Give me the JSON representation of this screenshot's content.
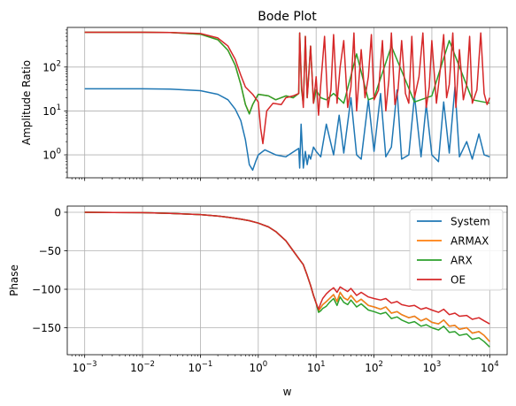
{
  "chart_data": [
    {
      "type": "line",
      "title": "Bode Plot",
      "xlabel": "",
      "ylabel": "Amplitude Ratio",
      "xscale": "log",
      "yscale": "log",
      "xlim": [
        0.0005,
        20000
      ],
      "ylim": [
        0.3,
        800
      ],
      "grid": true,
      "yticks": [
        {
          "value": 1,
          "label_base": "10",
          "label_exp": "0"
        },
        {
          "value": 10,
          "label_base": "10",
          "label_exp": "1"
        },
        {
          "value": 100,
          "label_base": "10",
          "label_exp": "2"
        }
      ],
      "series": [
        {
          "key": "system",
          "color": "#1f77b4",
          "x": [
            0.001,
            0.01,
            0.03,
            0.1,
            0.2,
            0.3,
            0.4,
            0.5,
            0.6,
            0.7,
            0.8,
            0.9,
            1.0,
            1.3,
            2,
            3,
            5,
            5.2,
            5.5,
            6,
            6.5,
            7,
            7.5,
            8,
            9,
            10,
            12,
            15,
            20,
            25,
            30,
            40,
            50,
            60,
            80,
            100,
            130,
            160,
            200,
            250,
            300,
            400,
            500,
            650,
            800,
            1000,
            1300,
            1600,
            2000,
            2500,
            3000,
            4000,
            5000,
            6500,
            8000,
            10000
          ],
          "y": [
            32,
            32,
            31.5,
            29,
            24,
            18,
            11,
            6,
            2.2,
            0.6,
            0.45,
            0.7,
            1.0,
            1.3,
            1.0,
            0.9,
            1.4,
            0.5,
            5,
            0.5,
            1.2,
            0.6,
            1.0,
            0.8,
            1.5,
            1.2,
            0.9,
            5,
            1.0,
            8,
            1.1,
            20,
            1.0,
            0.8,
            18,
            1.2,
            25,
            0.9,
            1.5,
            30,
            0.8,
            1.0,
            22,
            0.9,
            14,
            1.0,
            0.7,
            16,
            1.1,
            35,
            0.9,
            2.0,
            0.8,
            3,
            1.0,
            0.9
          ]
        },
        {
          "key": "armax",
          "color": "#ff7f0e",
          "x": [
            0.001,
            0.01,
            0.03,
            0.1,
            0.2,
            0.3,
            0.4,
            0.5,
            0.6,
            0.7,
            0.8,
            1.0,
            1.5,
            2,
            3,
            4,
            5
          ],
          "y": [
            620,
            620,
            610,
            560,
            420,
            240,
            110,
            40,
            14,
            9,
            14,
            24,
            22,
            18,
            22,
            20,
            25
          ]
        },
        {
          "key": "arx",
          "color": "#2ca02c",
          "x": [
            0.001,
            0.01,
            0.03,
            0.1,
            0.2,
            0.3,
            0.4,
            0.5,
            0.6,
            0.7,
            0.8,
            1.0,
            1.5,
            2,
            3,
            4,
            5,
            5.2,
            5.6,
            6,
            6.5,
            7,
            8,
            9,
            10,
            12,
            15,
            20,
            30,
            50,
            80,
            100,
            200,
            500,
            1000,
            2000,
            5000,
            10000
          ],
          "y": [
            620,
            620,
            610,
            560,
            420,
            240,
            110,
            40,
            14,
            8.5,
            14,
            24,
            22,
            18,
            22,
            20,
            25,
            600,
            30,
            14,
            500,
            20,
            300,
            15,
            30,
            20,
            18,
            25,
            15,
            200,
            18,
            20,
            300,
            16,
            22,
            400,
            18,
            15
          ]
        },
        {
          "key": "oe",
          "color": "#d62728",
          "x": [
            0.001,
            0.01,
            0.03,
            0.1,
            0.2,
            0.3,
            0.4,
            0.5,
            0.6,
            0.8,
            1.0,
            1.1,
            1.2,
            1.4,
            1.8,
            2.5,
            3,
            4,
            5,
            5.2,
            5.6,
            6,
            6.5,
            7,
            7.5,
            8,
            9,
            10,
            11,
            12,
            14,
            16,
            18,
            20,
            23,
            26,
            30,
            35,
            40,
            45,
            50,
            60,
            70,
            80,
            90,
            100,
            120,
            140,
            160,
            180,
            200,
            230,
            260,
            300,
            350,
            400,
            450,
            500,
            600,
            700,
            800,
            900,
            1000,
            1200,
            1400,
            1600,
            1800,
            2000,
            2300,
            2600,
            3000,
            3500,
            4000,
            4500,
            5000,
            6000,
            7000,
            8000,
            9000,
            10000
          ],
          "y": [
            620,
            620,
            615,
            580,
            460,
            300,
            150,
            65,
            35,
            24,
            16,
            4,
            1.8,
            10,
            15,
            14,
            20,
            22,
            25,
            600,
            40,
            12,
            500,
            20,
            70,
            300,
            15,
            60,
            8,
            40,
            500,
            12,
            30,
            550,
            15,
            100,
            400,
            12,
            35,
            600,
            10,
            250,
            20,
            60,
            550,
            18,
            30,
            400,
            10,
            50,
            600,
            14,
            30,
            400,
            25,
            15,
            500,
            20,
            60,
            600,
            12,
            35,
            400,
            15,
            90,
            550,
            20,
            40,
            600,
            12,
            250,
            18,
            40,
            500,
            15,
            30,
            600,
            25,
            14,
            20
          ]
        }
      ]
    },
    {
      "type": "line",
      "title": "",
      "xlabel": "w",
      "ylabel": "Phase",
      "xscale": "log",
      "yscale": "linear",
      "xlim": [
        0.0005,
        20000
      ],
      "ylim": [
        -185,
        8
      ],
      "grid": true,
      "legend": "top-right",
      "xticks": [
        {
          "value": 0.001,
          "label_base": "10",
          "label_exp": "−3"
        },
        {
          "value": 0.01,
          "label_base": "10",
          "label_exp": "−2"
        },
        {
          "value": 0.1,
          "label_base": "10",
          "label_exp": "−1"
        },
        {
          "value": 1,
          "label_base": "10",
          "label_exp": "0"
        },
        {
          "value": 10,
          "label_base": "10",
          "label_exp": "1"
        },
        {
          "value": 100,
          "label_base": "10",
          "label_exp": "2"
        },
        {
          "value": 1000,
          "label_base": "10",
          "label_exp": "3"
        },
        {
          "value": 10000,
          "label_base": "10",
          "label_exp": "4"
        }
      ],
      "yticks": [
        {
          "value": 0,
          "label": "0"
        },
        {
          "value": -50,
          "label": "−50"
        },
        {
          "value": -100,
          "label": "−100"
        },
        {
          "value": -150,
          "label": "−150"
        }
      ],
      "series": [
        {
          "key": "system",
          "name": "System",
          "color": "#1f77b4",
          "x": [
            0.001,
            0.01,
            0.03,
            0.1,
            0.2,
            0.3,
            0.5,
            0.7,
            1.0,
            1.5,
            2,
            3,
            4,
            5,
            6,
            7,
            8,
            9,
            10,
            11,
            12,
            13,
            15,
            17,
            20,
            23,
            26,
            30,
            35,
            40,
            50,
            60,
            80,
            100,
            130,
            160,
            200,
            250,
            300,
            400,
            500,
            650,
            800,
            1000,
            1300,
            1600,
            2000,
            2500,
            3000,
            4000,
            5000,
            6500,
            8000,
            10000
          ],
          "y": [
            0,
            -0.5,
            -1.5,
            -3,
            -5,
            -6.5,
            -9,
            -11,
            -14,
            -19,
            -25,
            -37,
            -50,
            -60,
            -68,
            -82,
            -95,
            -108,
            -118,
            -128,
            -124,
            -120,
            -116,
            -112,
            -107,
            -116,
            -104,
            -111,
            -114,
            -108,
            -117,
            -113,
            -121,
            -123,
            -126,
            -123,
            -131,
            -129,
            -133,
            -137,
            -135,
            -141,
            -138,
            -143,
            -145,
            -140,
            -148,
            -147,
            -152,
            -150,
            -157,
            -155,
            -160,
            -168
          ]
        },
        {
          "key": "armax",
          "name": "ARMAX",
          "color": "#ff7f0e",
          "x": [
            0.001,
            0.01,
            0.03,
            0.1,
            0.2,
            0.3,
            0.5,
            0.7,
            1.0,
            1.5,
            2,
            3,
            4,
            5,
            6,
            7,
            8,
            9,
            10,
            11,
            12,
            13,
            15,
            17,
            20,
            23,
            26,
            30,
            35,
            40,
            50,
            60,
            80,
            100,
            130,
            160,
            200,
            250,
            300,
            400,
            500,
            650,
            800,
            1000,
            1300,
            1600,
            2000,
            2500,
            3000,
            4000,
            5000,
            6500,
            8000,
            10000
          ],
          "y": [
            0,
            -0.5,
            -1.5,
            -3,
            -5,
            -6.5,
            -9,
            -11,
            -14,
            -19,
            -25,
            -37,
            -50,
            -60,
            -68,
            -82,
            -95,
            -108,
            -118,
            -128,
            -124,
            -120,
            -116,
            -112,
            -107,
            -116,
            -104,
            -111,
            -114,
            -108,
            -117,
            -113,
            -121,
            -123,
            -126,
            -123,
            -131,
            -129,
            -133,
            -137,
            -135,
            -141,
            -138,
            -143,
            -145,
            -140,
            -148,
            -147,
            -152,
            -150,
            -157,
            -155,
            -160,
            -168
          ]
        },
        {
          "key": "arx",
          "name": "ARX",
          "color": "#2ca02c",
          "x": [
            0.001,
            0.01,
            0.03,
            0.1,
            0.2,
            0.3,
            0.5,
            0.7,
            1.0,
            1.5,
            2,
            3,
            4,
            5,
            6,
            7,
            8,
            9,
            10,
            11,
            12,
            13,
            15,
            17,
            20,
            23,
            26,
            30,
            35,
            40,
            50,
            60,
            80,
            100,
            130,
            160,
            200,
            250,
            300,
            400,
            500,
            650,
            800,
            1000,
            1300,
            1600,
            2000,
            2500,
            3000,
            4000,
            5000,
            6500,
            8000,
            10000
          ],
          "y": [
            0,
            -0.5,
            -1.5,
            -3,
            -5,
            -6.5,
            -9,
            -11,
            -14,
            -19,
            -25,
            -37,
            -50,
            -60,
            -68,
            -82,
            -95,
            -108,
            -118,
            -130,
            -128,
            -125,
            -122,
            -117,
            -112,
            -121,
            -110,
            -117,
            -120,
            -114,
            -123,
            -119,
            -127,
            -129,
            -132,
            -130,
            -138,
            -136,
            -140,
            -144,
            -142,
            -148,
            -146,
            -150,
            -153,
            -148,
            -156,
            -155,
            -160,
            -158,
            -165,
            -163,
            -168,
            -175
          ]
        },
        {
          "key": "oe",
          "name": "OE",
          "color": "#d62728",
          "x": [
            0.001,
            0.01,
            0.03,
            0.1,
            0.2,
            0.3,
            0.5,
            0.7,
            1.0,
            1.5,
            2,
            3,
            4,
            5,
            6,
            7,
            8,
            9,
            10,
            11,
            12,
            13,
            15,
            17,
            20,
            23,
            26,
            30,
            35,
            40,
            50,
            60,
            80,
            100,
            130,
            160,
            200,
            250,
            300,
            400,
            500,
            650,
            800,
            1000,
            1300,
            1600,
            2000,
            2500,
            3000,
            4000,
            5000,
            6500,
            8000,
            10000
          ],
          "y": [
            0,
            -0.5,
            -1.5,
            -3,
            -5,
            -6.5,
            -9,
            -11,
            -14,
            -19,
            -25,
            -37,
            -50,
            -60,
            -68,
            -82,
            -95,
            -108,
            -118,
            -126,
            -118,
            -112,
            -106,
            -102,
            -98,
            -104,
            -97,
            -100,
            -103,
            -99,
            -108,
            -104,
            -110,
            -112,
            -114,
            -112,
            -118,
            -116,
            -120,
            -122,
            -121,
            -126,
            -124,
            -127,
            -130,
            -126,
            -133,
            -131,
            -135,
            -134,
            -139,
            -137,
            -141,
            -145
          ]
        }
      ]
    }
  ]
}
